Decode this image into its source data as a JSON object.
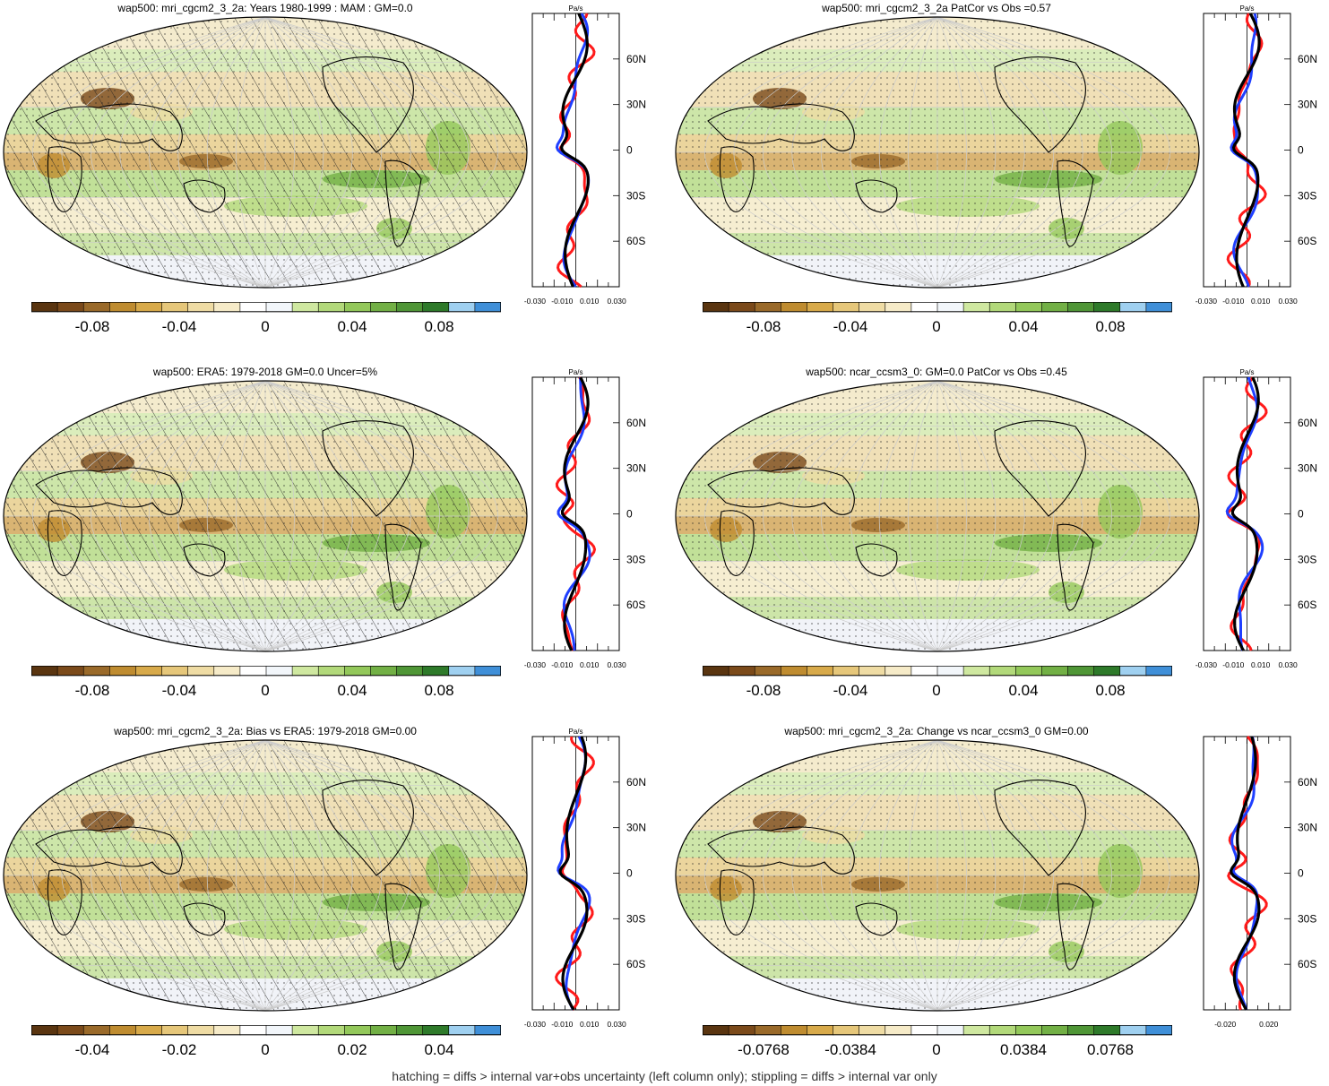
{
  "figure": {
    "footer": "hatching = diffs > internal var+obs uncertainty (left column only); stippling = diffs > internal var only",
    "colors": [
      "#5a3510",
      "#7b4a1a",
      "#9a6a2a",
      "#bf8c30",
      "#d8aa4a",
      "#e6c77a",
      "#efdca4",
      "#f6ebc8",
      "#ffffff",
      "#f2f6fa",
      "#cfe8a0",
      "#b2d97a",
      "#93c85a",
      "#72b045",
      "#4f9636",
      "#2e7a2a",
      "#9fd0f0",
      "#3f8fd8"
    ]
  },
  "panels": [
    {
      "id": "p1",
      "title": "wap500: mri_cgcm2_3_2a: Years 1980-1999 : MAM : GM=0.0",
      "colorbar_labels": [
        "-0.08",
        "-0.04",
        "0",
        "0.04",
        "0.08"
      ],
      "zonal": {
        "unit": "Pa/s",
        "lat_labels": [
          "60N",
          "30N",
          "0",
          "30S",
          "60S"
        ],
        "x_labels": [
          "-0.030",
          "-0.010",
          "0.010",
          "0.030"
        ]
      }
    },
    {
      "id": "p2",
      "title": "wap500: mri_cgcm2_3_2a PatCor vs Obs =0.57",
      "colorbar_labels": [
        "-0.08",
        "-0.04",
        "0",
        "0.04",
        "0.08"
      ],
      "zonal": {
        "unit": "Pa/s",
        "lat_labels": [
          "60N",
          "30N",
          "0",
          "30S",
          "60S"
        ],
        "x_labels": [
          "-0.030",
          "-0.010",
          "0.010",
          "0.030"
        ]
      }
    },
    {
      "id": "p3",
      "title": "wap500: ERA5: 1979-2018 GM=0.0 Uncer=5%",
      "colorbar_labels": [
        "-0.08",
        "-0.04",
        "0",
        "0.04",
        "0.08"
      ],
      "zonal": {
        "unit": "Pa/s",
        "lat_labels": [
          "60N",
          "30N",
          "0",
          "30S",
          "60S"
        ],
        "x_labels": [
          "-0.030",
          "-0.010",
          "0.010",
          "0.030"
        ]
      }
    },
    {
      "id": "p4",
      "title": "wap500: ncar_ccsm3_0: GM=0.0 PatCor vs Obs =0.45",
      "colorbar_labels": [
        "-0.08",
        "-0.04",
        "0",
        "0.04",
        "0.08"
      ],
      "zonal": {
        "unit": "Pa/s",
        "lat_labels": [
          "60N",
          "30N",
          "0",
          "30S",
          "60S"
        ],
        "x_labels": [
          "-0.030",
          "-0.010",
          "0.010",
          "0.030"
        ]
      }
    },
    {
      "id": "p5",
      "title": "wap500: mri_cgcm2_3_2a: Bias vs ERA5: 1979-2018 GM=0.00",
      "colorbar_labels": [
        "-0.04",
        "-0.02",
        "0",
        "0.02",
        "0.04"
      ],
      "zonal": {
        "unit": "Pa/s",
        "lat_labels": [
          "60N",
          "30N",
          "0",
          "30S",
          "60S"
        ],
        "x_labels": [
          "-0.030",
          "-0.010",
          "0.010",
          "0.030"
        ]
      }
    },
    {
      "id": "p6",
      "title": "wap500: mri_cgcm2_3_2a: Change vs ncar_ccsm3_0 GM=0.00",
      "colorbar_labels": [
        "-0.0768",
        "-0.0384",
        "0",
        "0.0384",
        "0.0768"
      ],
      "zonal": {
        "unit": "",
        "lat_labels": [
          "60N",
          "30N",
          "0",
          "30S",
          "60S"
        ],
        "x_labels": [
          "-0.020",
          "0.020"
        ]
      }
    }
  ]
}
